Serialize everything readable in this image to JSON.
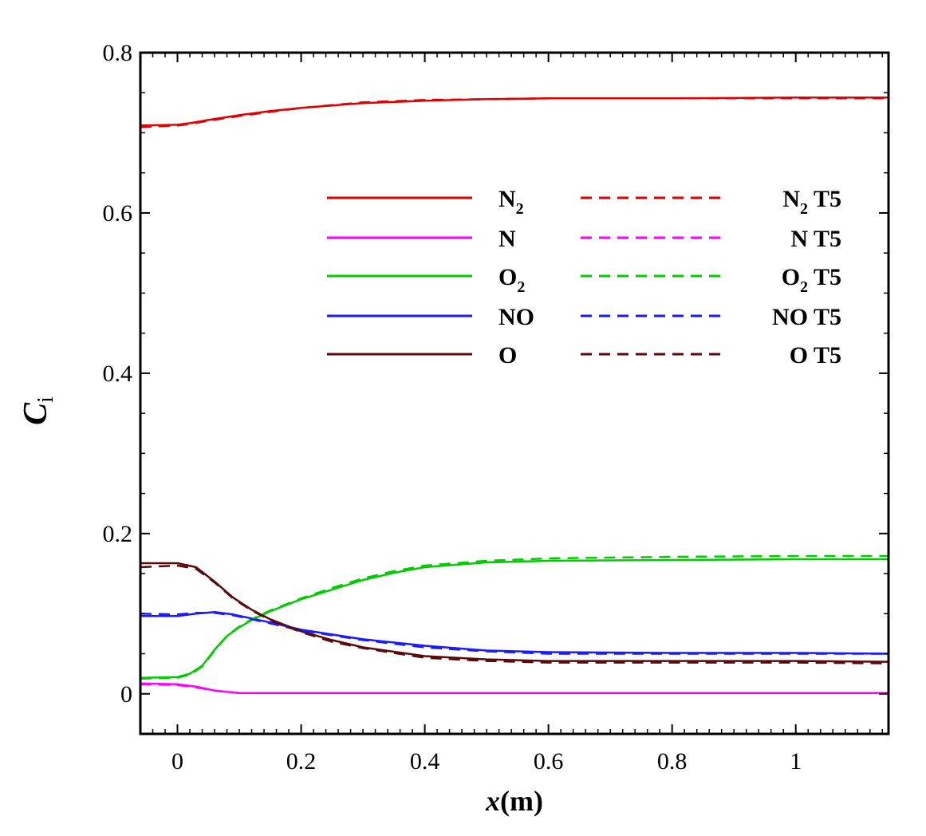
{
  "chart_data": {
    "type": "line",
    "title": "",
    "xlabel": {
      "var": "x",
      "unit": "(m)"
    },
    "ylabel": {
      "var": "C",
      "sub": "i"
    },
    "xlim": [
      -0.06,
      1.15
    ],
    "ylim": [
      -0.05,
      0.8
    ],
    "xticks": [
      {
        "value": 0,
        "label": "0"
      },
      {
        "value": 0.2,
        "label": "0.2"
      },
      {
        "value": 0.4,
        "label": "0.4"
      },
      {
        "value": 0.6,
        "label": "0.6"
      },
      {
        "value": 0.8,
        "label": "0.8"
      },
      {
        "value": 1,
        "label": "1"
      }
    ],
    "yticks": [
      {
        "value": 0,
        "label": "0"
      },
      {
        "value": 0.2,
        "label": "0.2"
      },
      {
        "value": 0.4,
        "label": "0.4"
      },
      {
        "value": 0.6,
        "label": "0.6"
      },
      {
        "value": 0.8,
        "label": "0.8"
      }
    ],
    "legend_position": "top-right",
    "series": [
      {
        "name": "N2",
        "label_main": "N",
        "label_sub": "2",
        "label_suffix": "",
        "color": "#e00000",
        "dashed": false,
        "x": [
          -0.06,
          0,
          0.02,
          0.05,
          0.1,
          0.15,
          0.2,
          0.3,
          0.4,
          0.5,
          0.6,
          0.8,
          1.0,
          1.15
        ],
        "y": [
          0.709,
          0.71,
          0.712,
          0.716,
          0.722,
          0.727,
          0.731,
          0.737,
          0.74,
          0.742,
          0.743,
          0.743,
          0.744,
          0.744
        ]
      },
      {
        "name": "N",
        "label_main": "N",
        "label_sub": "",
        "label_suffix": "",
        "color": "#ff00ff",
        "dashed": false,
        "x": [
          -0.06,
          0,
          0.03,
          0.06,
          0.1,
          0.2,
          0.5,
          1.15
        ],
        "y": [
          0.013,
          0.012,
          0.009,
          0.004,
          0.001,
          0.001,
          0.001,
          0.001
        ]
      },
      {
        "name": "O2",
        "label_main": "O",
        "label_sub": "2",
        "label_suffix": "",
        "color": "#00cc00",
        "dashed": false,
        "x": [
          -0.06,
          0,
          0.02,
          0.04,
          0.06,
          0.08,
          0.1,
          0.12,
          0.15,
          0.2,
          0.25,
          0.3,
          0.35,
          0.4,
          0.5,
          0.6,
          0.8,
          1.0,
          1.15
        ],
        "y": [
          0.02,
          0.021,
          0.025,
          0.035,
          0.055,
          0.072,
          0.083,
          0.092,
          0.103,
          0.118,
          0.13,
          0.142,
          0.151,
          0.158,
          0.164,
          0.166,
          0.167,
          0.168,
          0.168
        ]
      },
      {
        "name": "NO",
        "label_main": "NO",
        "label_sub": "",
        "label_suffix": "",
        "color": "#1a1aff",
        "dashed": false,
        "x": [
          -0.06,
          0,
          0.03,
          0.06,
          0.09,
          0.12,
          0.15,
          0.2,
          0.3,
          0.4,
          0.5,
          0.6,
          0.8,
          1.0,
          1.15
        ],
        "y": [
          0.097,
          0.097,
          0.1,
          0.102,
          0.099,
          0.094,
          0.089,
          0.08,
          0.068,
          0.06,
          0.054,
          0.052,
          0.051,
          0.051,
          0.05
        ]
      },
      {
        "name": "O",
        "label_main": "O",
        "label_sub": "",
        "label_suffix": "",
        "color": "#5a0a0a",
        "dashed": false,
        "x": [
          -0.06,
          0,
          0.03,
          0.06,
          0.09,
          0.12,
          0.15,
          0.2,
          0.25,
          0.3,
          0.4,
          0.5,
          0.6,
          0.8,
          1.0,
          1.15
        ],
        "y": [
          0.163,
          0.163,
          0.158,
          0.14,
          0.12,
          0.105,
          0.093,
          0.078,
          0.067,
          0.058,
          0.047,
          0.043,
          0.041,
          0.041,
          0.041,
          0.04
        ]
      },
      {
        "name": "N2 T5",
        "label_main": "N",
        "label_sub": "2",
        "label_suffix": " T5",
        "color": "#e00000",
        "dashed": true,
        "x": [
          -0.06,
          0,
          0.02,
          0.05,
          0.1,
          0.15,
          0.2,
          0.3,
          0.4,
          0.5,
          0.6,
          0.8,
          1.0,
          1.15
        ],
        "y": [
          0.707,
          0.709,
          0.711,
          0.715,
          0.721,
          0.726,
          0.731,
          0.738,
          0.741,
          0.742,
          0.743,
          0.743,
          0.743,
          0.743
        ]
      },
      {
        "name": "N T5",
        "label_main": "N",
        "label_sub": "",
        "label_suffix": "  T5",
        "color": "#ff00ff",
        "dashed": true,
        "x": [
          -0.06,
          0,
          0.03,
          0.06,
          0.1,
          0.2,
          0.5,
          1.15
        ],
        "y": [
          0.012,
          0.011,
          0.008,
          0.004,
          0.001,
          0.001,
          0.001,
          0.001
        ]
      },
      {
        "name": "O2 T5",
        "label_main": "O",
        "label_sub": "2",
        "label_suffix": " T5",
        "color": "#00cc00",
        "dashed": true,
        "x": [
          -0.06,
          0,
          0.02,
          0.04,
          0.06,
          0.08,
          0.1,
          0.12,
          0.15,
          0.2,
          0.25,
          0.3,
          0.35,
          0.4,
          0.5,
          0.6,
          0.8,
          1.0,
          1.15
        ],
        "y": [
          0.019,
          0.02,
          0.024,
          0.034,
          0.054,
          0.072,
          0.084,
          0.093,
          0.104,
          0.119,
          0.132,
          0.144,
          0.153,
          0.16,
          0.166,
          0.169,
          0.171,
          0.172,
          0.172
        ]
      },
      {
        "name": "NO T5",
        "label_main": "NO",
        "label_sub": "",
        "label_suffix": " T5",
        "color": "#1a1aff",
        "dashed": true,
        "x": [
          -0.06,
          0,
          0.03,
          0.06,
          0.09,
          0.12,
          0.15,
          0.2,
          0.3,
          0.4,
          0.5,
          0.6,
          0.8,
          1.0,
          1.15
        ],
        "y": [
          0.1,
          0.099,
          0.101,
          0.101,
          0.098,
          0.093,
          0.088,
          0.079,
          0.067,
          0.058,
          0.053,
          0.05,
          0.05,
          0.05,
          0.05
        ]
      },
      {
        "name": "O T5",
        "label_main": "O",
        "label_sub": "",
        "label_suffix": " T5",
        "color": "#5a0a0a",
        "dashed": true,
        "x": [
          -0.06,
          0,
          0.03,
          0.06,
          0.09,
          0.12,
          0.15,
          0.2,
          0.25,
          0.3,
          0.4,
          0.5,
          0.6,
          0.8,
          1.0,
          1.15
        ],
        "y": [
          0.158,
          0.16,
          0.156,
          0.139,
          0.119,
          0.104,
          0.092,
          0.077,
          0.065,
          0.057,
          0.045,
          0.041,
          0.039,
          0.039,
          0.039,
          0.038
        ]
      }
    ]
  }
}
